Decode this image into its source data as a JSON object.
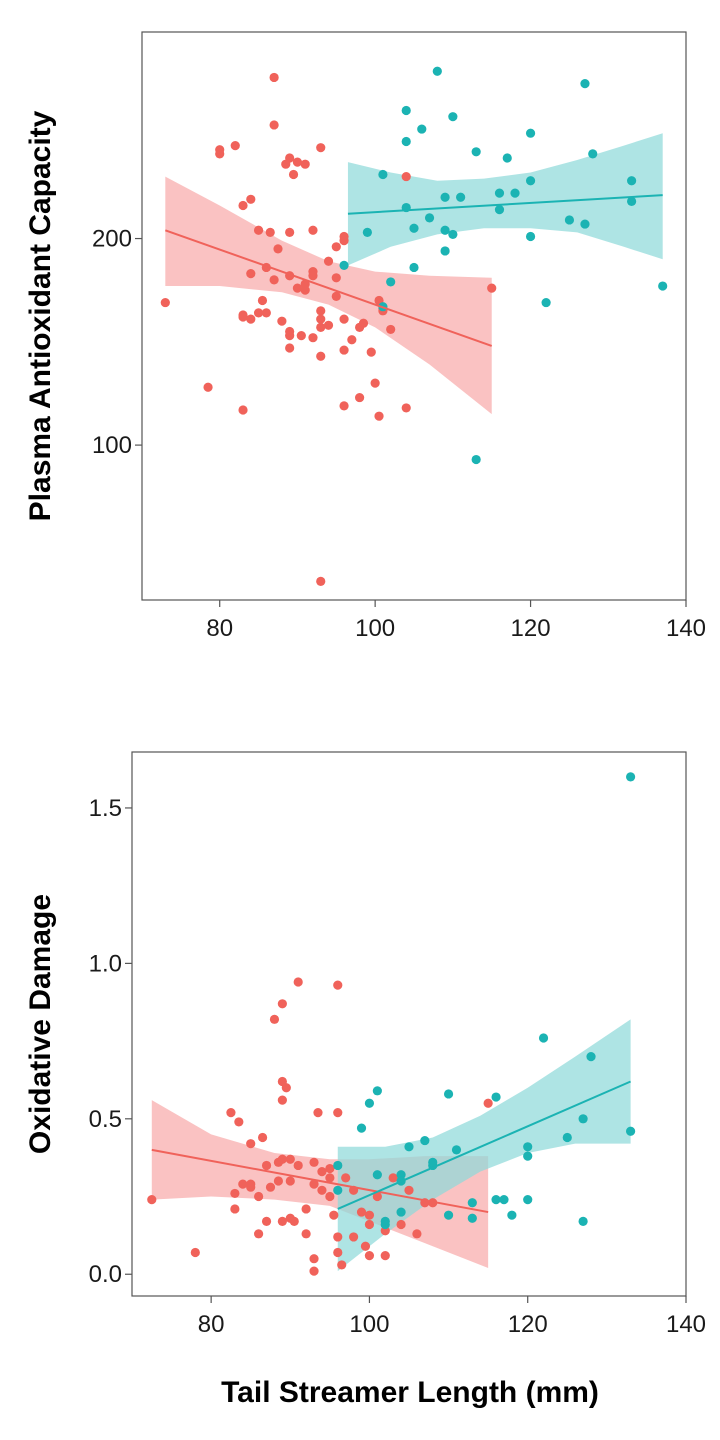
{
  "colors": {
    "red": "#f0625a",
    "red_band": "#f8aaaa",
    "teal": "#1bb3b3",
    "teal_band": "#8fdada",
    "axis": "#555555"
  },
  "shared_xlabel": "Tail Streamer Length (mm)",
  "chart_data": [
    {
      "type": "scatter",
      "ylabel": "Plasma Antioxidant Capacity",
      "xlim": [
        70,
        140
      ],
      "ylim": [
        25,
        300
      ],
      "xticks": [
        80,
        100,
        120,
        140
      ],
      "yticks": [
        100,
        200
      ],
      "series": [
        {
          "color": "red",
          "points": [
            [
              73,
              169
            ],
            [
              78.5,
              128
            ],
            [
              80,
              241
            ],
            [
              80,
              243
            ],
            [
              82,
              245
            ],
            [
              83,
              117
            ],
            [
              83,
              163
            ],
            [
              83,
              216
            ],
            [
              83,
              162
            ],
            [
              84,
              161
            ],
            [
              84,
              219
            ],
            [
              84,
              183
            ],
            [
              85,
              204
            ],
            [
              85,
              164
            ],
            [
              85.5,
              170
            ],
            [
              86,
              186
            ],
            [
              86,
              164
            ],
            [
              86.5,
              203
            ],
            [
              87,
              180
            ],
            [
              87,
              278
            ],
            [
              87,
              255
            ],
            [
              87.5,
              195
            ],
            [
              88,
              160
            ],
            [
              88.5,
              236
            ],
            [
              89,
              239
            ],
            [
              89,
              203
            ],
            [
              89,
              182
            ],
            [
              89,
              155
            ],
            [
              89,
              153
            ],
            [
              89,
              147
            ],
            [
              89.5,
              231
            ],
            [
              90,
              237
            ],
            [
              90,
              176
            ],
            [
              90.5,
              153
            ],
            [
              91,
              178
            ],
            [
              91,
              236
            ],
            [
              91,
              175
            ],
            [
              92,
              184
            ],
            [
              92,
              182
            ],
            [
              92,
              152
            ],
            [
              92,
              204
            ],
            [
              93,
              165
            ],
            [
              93,
              157
            ],
            [
              93,
              161
            ],
            [
              93,
              244
            ],
            [
              93,
              143
            ],
            [
              93,
              34
            ],
            [
              94,
              189
            ],
            [
              94,
              158
            ],
            [
              95,
              172
            ],
            [
              95,
              181
            ],
            [
              95,
              196
            ],
            [
              96,
              146
            ],
            [
              96,
              119
            ],
            [
              96,
              199
            ],
            [
              96,
              161
            ],
            [
              96,
              201
            ],
            [
              97,
              151
            ],
            [
              98,
              157
            ],
            [
              98,
              123
            ],
            [
              98.5,
              159
            ],
            [
              99.5,
              145
            ],
            [
              100,
              130
            ],
            [
              100.5,
              114
            ],
            [
              100.5,
              170
            ],
            [
              101,
              165
            ],
            [
              101,
              166
            ],
            [
              102,
              156
            ],
            [
              104,
              118
            ],
            [
              104,
              230
            ],
            [
              115,
              176
            ]
          ],
          "fit": [
            [
              73,
              204
            ],
            [
              115,
              148
            ]
          ],
          "band_upper": [
            [
              73,
              230
            ],
            [
              80,
              216
            ],
            [
              88,
              199
            ],
            [
              94,
              189
            ],
            [
              100,
              184
            ],
            [
              107,
              182
            ],
            [
              115,
              181
            ]
          ],
          "band_lower": [
            [
              73,
              177
            ],
            [
              80,
              177
            ],
            [
              88,
              174
            ],
            [
              94,
              168
            ],
            [
              100,
              157
            ],
            [
              107,
              139
            ],
            [
              115,
              115
            ]
          ]
        },
        {
          "color": "teal",
          "points": [
            [
              96,
              187
            ],
            [
              99,
              203
            ],
            [
              101,
              231
            ],
            [
              101,
              167
            ],
            [
              102,
              179
            ],
            [
              104,
              262
            ],
            [
              104,
              247
            ],
            [
              104,
              215
            ],
            [
              105,
              205
            ],
            [
              105,
              186
            ],
            [
              106,
              253
            ],
            [
              107,
              210
            ],
            [
              108,
              281
            ],
            [
              109,
              220
            ],
            [
              109,
              204
            ],
            [
              109,
              194
            ],
            [
              110,
              259
            ],
            [
              110,
              202
            ],
            [
              111,
              220
            ],
            [
              113,
              242
            ],
            [
              113,
              93
            ],
            [
              116,
              222
            ],
            [
              116,
              214
            ],
            [
              117,
              239
            ],
            [
              118,
              222
            ],
            [
              120,
              228
            ],
            [
              120,
              251
            ],
            [
              120,
              201
            ],
            [
              122,
              169
            ],
            [
              125,
              209
            ],
            [
              127,
              275
            ],
            [
              127,
              207
            ],
            [
              128,
              241
            ],
            [
              133,
              228
            ],
            [
              133,
              218
            ],
            [
              137,
              177
            ]
          ],
          "fit": [
            [
              96.5,
              212
            ],
            [
              137,
              221
            ]
          ],
          "band_upper": [
            [
              96.5,
              237
            ],
            [
              102,
              232
            ],
            [
              108,
              228
            ],
            [
              114,
              229
            ],
            [
              120,
              232
            ],
            [
              126,
              238
            ],
            [
              132,
              245
            ],
            [
              137,
              251
            ]
          ],
          "band_lower": [
            [
              96.5,
              187
            ],
            [
              102,
              196
            ],
            [
              108,
              202
            ],
            [
              114,
              205
            ],
            [
              120,
              205
            ],
            [
              126,
              203
            ],
            [
              132,
              196
            ],
            [
              137,
              190
            ]
          ]
        }
      ]
    },
    {
      "type": "scatter",
      "ylabel": "Oxidative Damage",
      "xlim": [
        70,
        140
      ],
      "ylim": [
        -0.07,
        1.68
      ],
      "xticks": [
        80,
        100,
        120,
        140
      ],
      "yticks": [
        0.0,
        0.5,
        1.0,
        1.5
      ],
      "ytick_labels": [
        "0.0",
        "0.5",
        "1.0",
        "1.5"
      ],
      "series": [
        {
          "color": "red",
          "points": [
            [
              72.5,
              0.24
            ],
            [
              78,
              0.07
            ],
            [
              82.5,
              0.52
            ],
            [
              83,
              0.21
            ],
            [
              83,
              0.26
            ],
            [
              83.5,
              0.49
            ],
            [
              84,
              0.29
            ],
            [
              85,
              0.42
            ],
            [
              85,
              0.29
            ],
            [
              85,
              0.28
            ],
            [
              86,
              0.25
            ],
            [
              86,
              0.13
            ],
            [
              86.5,
              0.44
            ],
            [
              87,
              0.17
            ],
            [
              87,
              0.35
            ],
            [
              87.5,
              0.28
            ],
            [
              88,
              0.82
            ],
            [
              88.5,
              0.36
            ],
            [
              88.5,
              0.3
            ],
            [
              89,
              0.37
            ],
            [
              89,
              0.87
            ],
            [
              89,
              0.62
            ],
            [
              89,
              0.56
            ],
            [
              89,
              0.17
            ],
            [
              89.5,
              0.6
            ],
            [
              90,
              0.37
            ],
            [
              90,
              0.3
            ],
            [
              90,
              0.18
            ],
            [
              90.5,
              0.17
            ],
            [
              91,
              0.94
            ],
            [
              91,
              0.35
            ],
            [
              92,
              0.21
            ],
            [
              92,
              0.13
            ],
            [
              93,
              0.36
            ],
            [
              93,
              0.29
            ],
            [
              93,
              0.05
            ],
            [
              93,
              0.01
            ],
            [
              93.5,
              0.52
            ],
            [
              94,
              0.27
            ],
            [
              94,
              0.33
            ],
            [
              95,
              0.34
            ],
            [
              95,
              0.31
            ],
            [
              95,
              0.25
            ],
            [
              95.5,
              0.19
            ],
            [
              96,
              0.52
            ],
            [
              96,
              0.93
            ],
            [
              96,
              0.12
            ],
            [
              96,
              0.07
            ],
            [
              96.5,
              0.03
            ],
            [
              97,
              0.31
            ],
            [
              98,
              0.27
            ],
            [
              98,
              0.12
            ],
            [
              99,
              0.2
            ],
            [
              99.5,
              0.09
            ],
            [
              100,
              0.19
            ],
            [
              100,
              0.06
            ],
            [
              100,
              0.16
            ],
            [
              101,
              0.25
            ],
            [
              102,
              0.14
            ],
            [
              102,
              0.06
            ],
            [
              103,
              0.31
            ],
            [
              104,
              0.16
            ],
            [
              105,
              0.27
            ],
            [
              106,
              0.13
            ],
            [
              107,
              0.23
            ],
            [
              108,
              0.23
            ],
            [
              115,
              0.55
            ]
          ],
          "fit": [
            [
              72.5,
              0.4
            ],
            [
              115,
              0.2
            ]
          ],
          "band_upper": [
            [
              72.5,
              0.56
            ],
            [
              80,
              0.45
            ],
            [
              88,
              0.39
            ],
            [
              95,
              0.37
            ],
            [
              100,
              0.37
            ],
            [
              107,
              0.38
            ],
            [
              115,
              0.38
            ]
          ],
          "band_lower": [
            [
              72.5,
              0.24
            ],
            [
              80,
              0.25
            ],
            [
              88,
              0.24
            ],
            [
              95,
              0.22
            ],
            [
              100,
              0.17
            ],
            [
              107,
              0.1
            ],
            [
              115,
              0.02
            ]
          ]
        },
        {
          "color": "teal",
          "points": [
            [
              96,
              0.35
            ],
            [
              96,
              0.27
            ],
            [
              99,
              0.47
            ],
            [
              100,
              0.55
            ],
            [
              101,
              0.32
            ],
            [
              101,
              0.59
            ],
            [
              102,
              0.17
            ],
            [
              102,
              0.16
            ],
            [
              104,
              0.32
            ],
            [
              104,
              0.3
            ],
            [
              104,
              0.2
            ],
            [
              105,
              0.41
            ],
            [
              107,
              0.43
            ],
            [
              108,
              0.35
            ],
            [
              108,
              0.36
            ],
            [
              110,
              0.58
            ],
            [
              110,
              0.19
            ],
            [
              111,
              0.4
            ],
            [
              113,
              0.23
            ],
            [
              113,
              0.18
            ],
            [
              116,
              0.24
            ],
            [
              116,
              0.57
            ],
            [
              117,
              0.24
            ],
            [
              118,
              0.19
            ],
            [
              120,
              0.41
            ],
            [
              120,
              0.24
            ],
            [
              120,
              0.38
            ],
            [
              122,
              0.76
            ],
            [
              125,
              0.44
            ],
            [
              127,
              0.17
            ],
            [
              127,
              0.5
            ],
            [
              128,
              0.7
            ],
            [
              133,
              1.6
            ],
            [
              133,
              0.46
            ]
          ],
          "fit": [
            [
              96,
              0.21
            ],
            [
              133,
              0.62
            ]
          ],
          "band_upper": [
            [
              96,
              0.41
            ],
            [
              102,
              0.41
            ],
            [
              108,
              0.44
            ],
            [
              114,
              0.51
            ],
            [
              120,
              0.6
            ],
            [
              126,
              0.7
            ],
            [
              133,
              0.82
            ]
          ],
          "band_lower": [
            [
              96,
              0.01
            ],
            [
              102,
              0.13
            ],
            [
              108,
              0.24
            ],
            [
              114,
              0.33
            ],
            [
              120,
              0.39
            ],
            [
              126,
              0.42
            ],
            [
              133,
              0.42
            ]
          ]
        }
      ]
    }
  ]
}
